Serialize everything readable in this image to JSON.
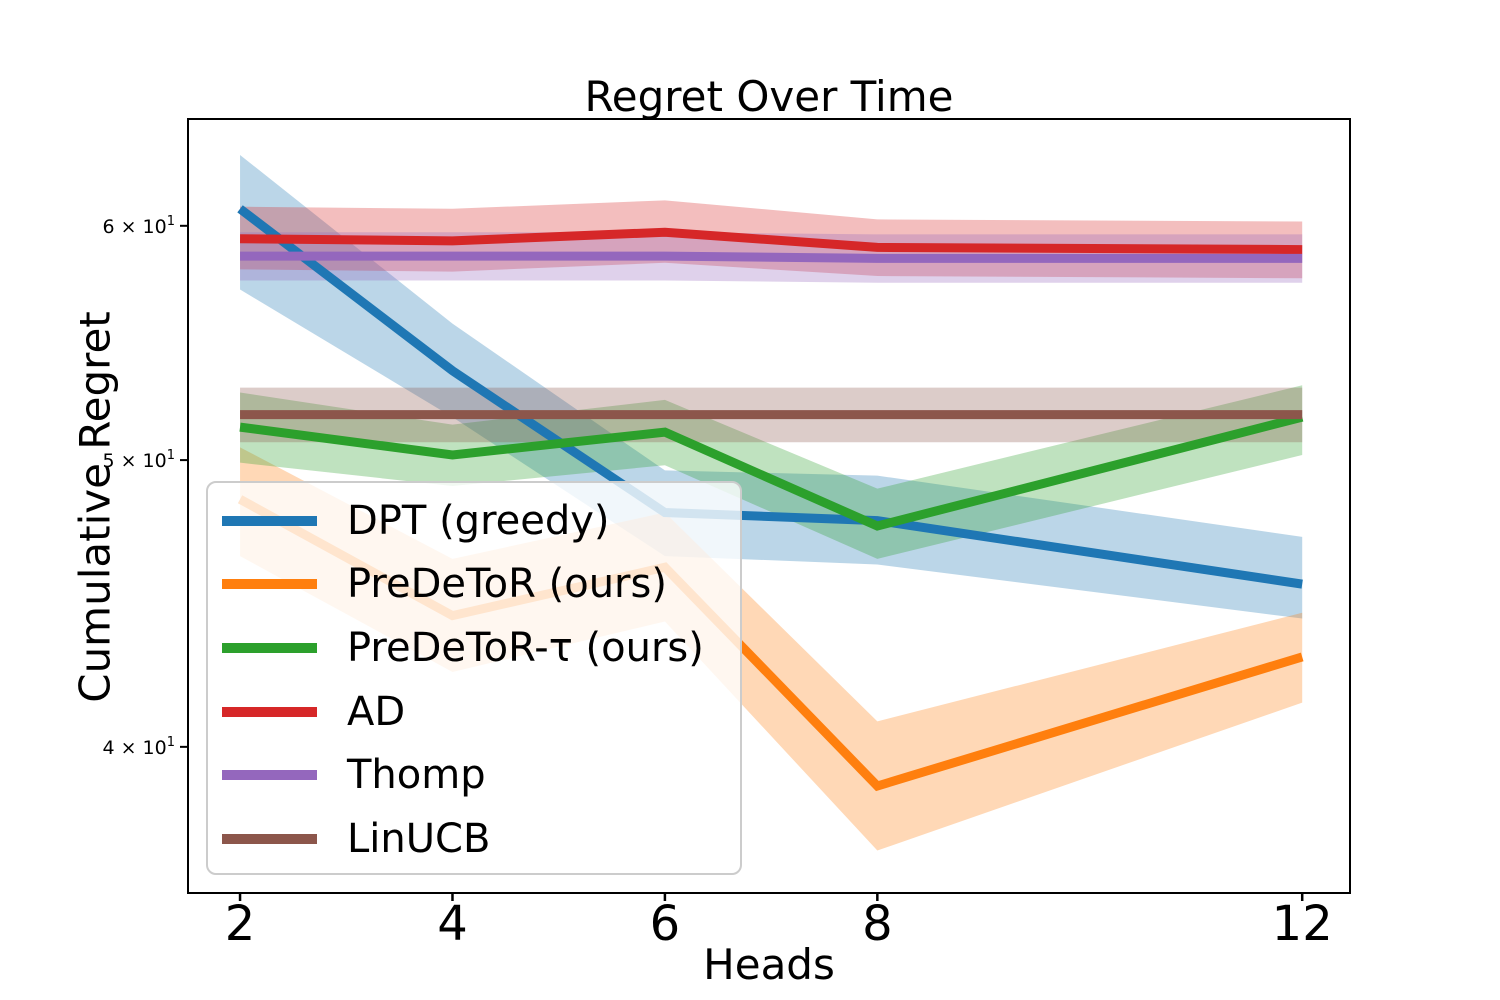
{
  "figure": {
    "background": "#ffffff"
  },
  "chart_data": {
    "type": "line",
    "title": "Regret Over Time",
    "xlabel": "Heads",
    "ylabel": "Cumulative Regret",
    "x_scale": "linear",
    "y_scale": "log",
    "xlim": [
      1.51,
      12.45
    ],
    "ylim": [
      35.7,
      65.2
    ],
    "grid": false,
    "legend_position": "lower left",
    "band_alpha": 0.3,
    "line_width": 9,
    "x": [
      2,
      4,
      6,
      8,
      12
    ],
    "x_tick_labels": [
      "2",
      "4",
      "6",
      "8",
      "12"
    ],
    "y_ticks": [
      {
        "value": 40,
        "mantissa": "4",
        "times": "× 10",
        "exp": "1"
      },
      {
        "value": 50,
        "mantissa": "5",
        "times": "× 10",
        "exp": "1"
      },
      {
        "value": 60,
        "mantissa": "6",
        "times": "× 10",
        "exp": "1"
      }
    ],
    "series": [
      {
        "name": "DPT (greedy)",
        "color": "#1f77b4",
        "values": [
          60.8,
          53.6,
          48.0,
          47.7,
          45.4
        ],
        "band_upper": [
          63.4,
          55.6,
          49.6,
          49.4,
          47.1
        ],
        "band_lower": [
          57.1,
          51.7,
          46.4,
          46.1,
          44.2
        ]
      },
      {
        "name": "PreDeToR (ours)",
        "color": "#ff7f0e",
        "values": [
          48.5,
          44.3,
          46.0,
          38.8,
          42.9
        ],
        "band_upper": [
          50.5,
          46.3,
          48.0,
          40.8,
          44.4
        ],
        "band_lower": [
          46.4,
          42.4,
          44.1,
          36.9,
          41.4
        ]
      },
      {
        "name": "PreDeToR-τ (ours)",
        "color": "#2ca02c",
        "values": [
          51.3,
          50.2,
          51.1,
          47.5,
          51.7
        ],
        "band_upper": [
          52.7,
          51.4,
          52.4,
          48.9,
          53.0
        ],
        "band_lower": [
          49.9,
          49.0,
          49.8,
          46.3,
          50.2
        ]
      },
      {
        "name": "AD",
        "color": "#d62728",
        "values": [
          59.4,
          59.3,
          59.7,
          59.0,
          58.9
        ],
        "band_upper": [
          60.9,
          60.8,
          61.2,
          60.3,
          60.2
        ],
        "band_lower": [
          58.0,
          57.9,
          58.3,
          57.7,
          57.6
        ]
      },
      {
        "name": "Thomp",
        "color": "#9467bd",
        "values": [
          58.6,
          58.6,
          58.6,
          58.5,
          58.5
        ],
        "band_upper": [
          59.7,
          59.7,
          59.7,
          59.6,
          59.6
        ],
        "band_lower": [
          57.5,
          57.5,
          57.5,
          57.4,
          57.4
        ]
      },
      {
        "name": "LinUCB",
        "color": "#8c564b",
        "values": [
          51.8,
          51.8,
          51.8,
          51.8,
          51.8
        ],
        "band_upper": [
          52.9,
          52.9,
          52.9,
          52.9,
          52.9
        ],
        "band_lower": [
          50.7,
          50.7,
          50.7,
          50.7,
          50.7
        ]
      }
    ]
  }
}
